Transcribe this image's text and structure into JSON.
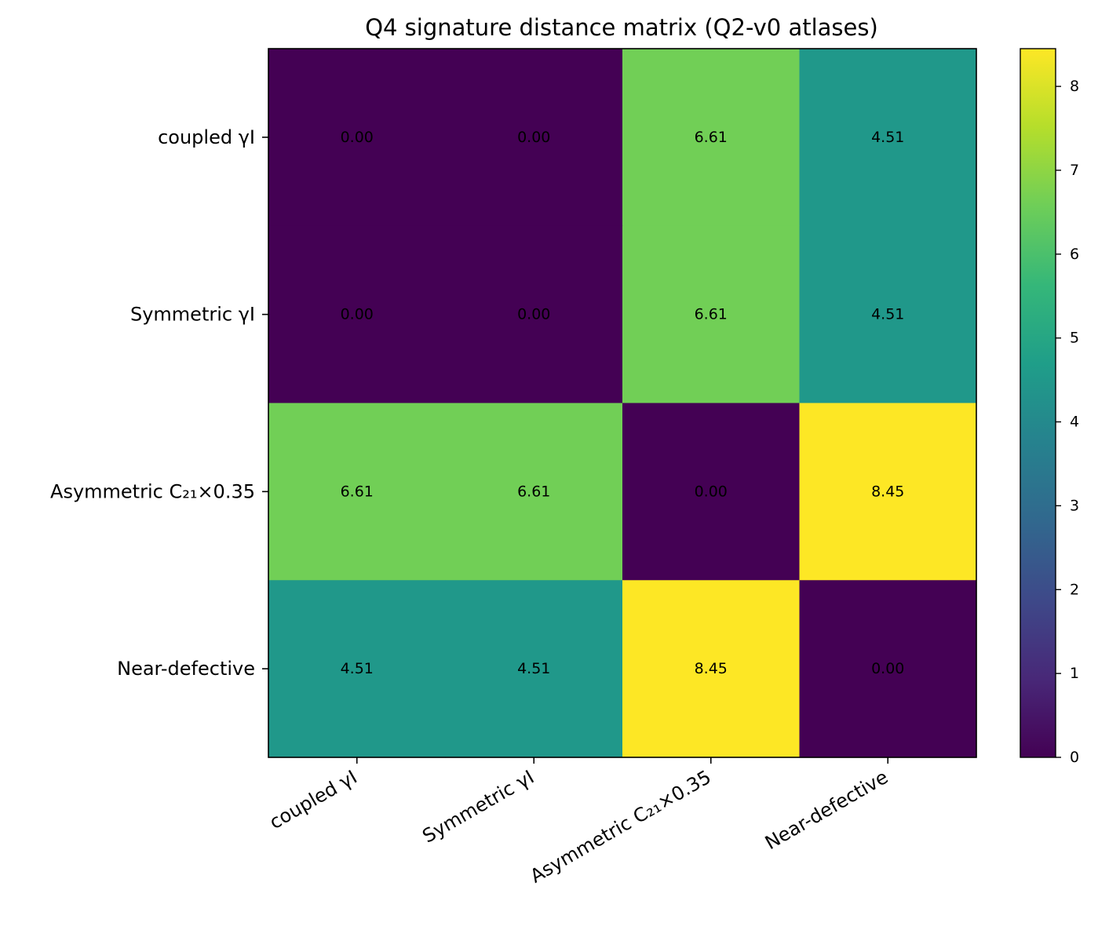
{
  "chart_data": {
    "type": "heatmap",
    "title": "Q4 signature distance matrix (Q2-v0 atlases)",
    "xlabel": "",
    "ylabel": "",
    "x_categories": [
      "coupled γI",
      "Symmetric γI",
      "Asymmetric C₂₁×0.35",
      "Near-defective"
    ],
    "y_categories": [
      "coupled γI",
      "Symmetric γI",
      "Asymmetric C₂₁×0.35",
      "Near-defective"
    ],
    "values": [
      [
        0.0,
        0.0,
        6.61,
        4.51
      ],
      [
        0.0,
        0.0,
        6.61,
        4.51
      ],
      [
        6.61,
        6.61,
        0.0,
        8.45
      ],
      [
        4.51,
        4.51,
        8.45,
        0.0
      ]
    ],
    "value_format": "2-decimals",
    "colormap": "viridis",
    "colorbar": {
      "range": [
        0,
        8.45
      ],
      "ticks": [
        0,
        1,
        2,
        3,
        4,
        5,
        6,
        7,
        8
      ],
      "tick_labels": [
        "0",
        "1",
        "2",
        "3",
        "4",
        "5",
        "6",
        "7",
        "8"
      ]
    },
    "colormap_stops": [
      "#440154",
      "#482878",
      "#3e4989",
      "#31688e",
      "#26828e",
      "#1f9e89",
      "#35b779",
      "#6ece58",
      "#b5de2b",
      "#fde725"
    ]
  }
}
